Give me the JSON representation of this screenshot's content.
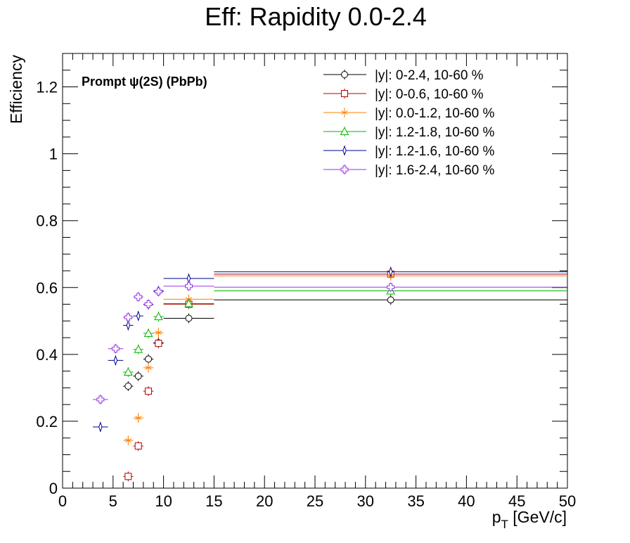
{
  "chart_data": {
    "type": "scatter",
    "title": "Eff: Rapidity 0.0-2.4",
    "xlabel_main": "p",
    "xlabel_sub": "T",
    "xlabel_unit": " [GeV/c]",
    "ylabel": "Efficiency",
    "annotation": "Prompt  ψ(2S) (PbPb)",
    "xlim": [
      0,
      50
    ],
    "ylim": [
      0,
      1.3
    ],
    "x_ticks": [
      0,
      5,
      10,
      15,
      20,
      25,
      30,
      35,
      40,
      45,
      50
    ],
    "y_ticks": [
      0,
      0.2,
      0.4,
      0.6,
      0.8,
      1,
      1.2
    ],
    "x_tick_labels": [
      "0",
      "5",
      "10",
      "15",
      "20",
      "25",
      "30",
      "35",
      "40",
      "45",
      "50"
    ],
    "y_tick_labels": [
      "0",
      "0.2",
      "0.4",
      "0.6",
      "0.8",
      "1",
      "1.2"
    ],
    "grid": false,
    "legend_position": "top-right",
    "series": [
      {
        "name": "|y|: 0-2.4, 10-60 %",
        "color": "#000000",
        "marker": "open-circle",
        "points": [
          {
            "x": 6.5,
            "y": 0.305,
            "xlo": 6,
            "xhi": 7
          },
          {
            "x": 7.5,
            "y": 0.335,
            "xlo": 7,
            "xhi": 8
          },
          {
            "x": 8.5,
            "y": 0.386,
            "xlo": 8,
            "xhi": 9
          },
          {
            "x": 9.5,
            "y": 0.435,
            "xlo": 9,
            "xhi": 10
          },
          {
            "x": 12.5,
            "y": 0.508,
            "xlo": 10,
            "xhi": 15
          },
          {
            "x": 32.5,
            "y": 0.563,
            "xlo": 15,
            "xhi": 50
          }
        ]
      },
      {
        "name": "|y|: 0-0.6, 10-60 %",
        "color": "#b40000",
        "marker": "open-square",
        "points": [
          {
            "x": 6.5,
            "y": 0.035,
            "xlo": 6,
            "xhi": 7
          },
          {
            "x": 7.5,
            "y": 0.126,
            "xlo": 7,
            "xhi": 8
          },
          {
            "x": 8.5,
            "y": 0.29,
            "xlo": 8,
            "xhi": 9
          },
          {
            "x": 9.5,
            "y": 0.433,
            "xlo": 9,
            "xhi": 10
          },
          {
            "x": 12.5,
            "y": 0.55,
            "xlo": 10,
            "xhi": 15
          },
          {
            "x": 32.5,
            "y": 0.64,
            "xlo": 15,
            "xhi": 50
          }
        ]
      },
      {
        "name": "|y|: 0.0-1.2, 10-60 %",
        "color": "#ff8000",
        "marker": "star",
        "points": [
          {
            "x": 6.5,
            "y": 0.143,
            "xlo": 6,
            "xhi": 7
          },
          {
            "x": 7.5,
            "y": 0.21,
            "xlo": 7,
            "xhi": 8
          },
          {
            "x": 8.5,
            "y": 0.36,
            "xlo": 8,
            "xhi": 9
          },
          {
            "x": 9.5,
            "y": 0.465,
            "xlo": 9,
            "xhi": 10
          },
          {
            "x": 12.5,
            "y": 0.565,
            "xlo": 10,
            "xhi": 15
          },
          {
            "x": 32.5,
            "y": 0.635,
            "xlo": 15,
            "xhi": 50
          }
        ]
      },
      {
        "name": "|y|: 1.2-1.8, 10-60 %",
        "color": "#00b400",
        "marker": "open-triangle",
        "points": [
          {
            "x": 6.5,
            "y": 0.347,
            "xlo": 6,
            "xhi": 7
          },
          {
            "x": 7.5,
            "y": 0.415,
            "xlo": 7,
            "xhi": 8
          },
          {
            "x": 8.5,
            "y": 0.463,
            "xlo": 8,
            "xhi": 9
          },
          {
            "x": 9.5,
            "y": 0.513,
            "xlo": 9,
            "xhi": 10
          },
          {
            "x": 12.5,
            "y": 0.552,
            "xlo": 10,
            "xhi": 15
          },
          {
            "x": 32.5,
            "y": 0.59,
            "xlo": 15,
            "xhi": 50
          }
        ]
      },
      {
        "name": "|y|: 1.2-1.6, 10-60 %",
        "color": "#000096",
        "marker": "thin-diamond",
        "points": [
          {
            "x": 3.75,
            "y": 0.183,
            "xlo": 3,
            "xhi": 4.5
          },
          {
            "x": 5.25,
            "y": 0.382,
            "xlo": 4.5,
            "xhi": 6
          },
          {
            "x": 6.5,
            "y": 0.487,
            "xlo": 6,
            "xhi": 7
          },
          {
            "x": 7.5,
            "y": 0.515,
            "xlo": 7,
            "xhi": 8
          },
          {
            "x": 8.5,
            "y": 0.549,
            "xlo": 8,
            "xhi": 9
          },
          {
            "x": 9.5,
            "y": 0.59,
            "xlo": 9,
            "xhi": 10
          },
          {
            "x": 12.5,
            "y": 0.627,
            "xlo": 10,
            "xhi": 15
          },
          {
            "x": 32.5,
            "y": 0.647,
            "xlo": 15,
            "xhi": 50
          }
        ]
      },
      {
        "name": "|y|: 1.6-2.4, 10-60 %",
        "color": "#9632e6",
        "marker": "open-cross",
        "points": [
          {
            "x": 3.75,
            "y": 0.265,
            "xlo": 3,
            "xhi": 4.5
          },
          {
            "x": 5.25,
            "y": 0.417,
            "xlo": 4.5,
            "xhi": 6
          },
          {
            "x": 6.5,
            "y": 0.511,
            "xlo": 6,
            "xhi": 7
          },
          {
            "x": 7.5,
            "y": 0.572,
            "xlo": 7,
            "xhi": 8
          },
          {
            "x": 8.5,
            "y": 0.55,
            "xlo": 8,
            "xhi": 9
          },
          {
            "x": 9.5,
            "y": 0.588,
            "xlo": 9,
            "xhi": 10
          },
          {
            "x": 12.5,
            "y": 0.604,
            "xlo": 10,
            "xhi": 15
          },
          {
            "x": 32.5,
            "y": 0.601,
            "xlo": 15,
            "xhi": 50
          }
        ]
      }
    ]
  }
}
